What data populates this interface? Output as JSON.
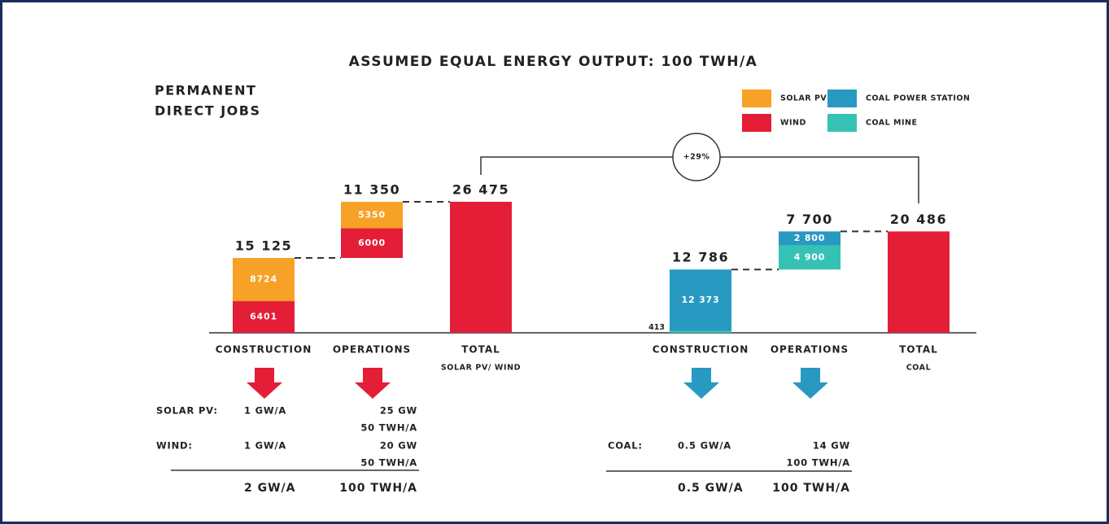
{
  "chart_data": {
    "type": "waterfall",
    "title": "ASSUMED EQUAL ENERGY OUTPUT: 100 TWH/A",
    "subtitle": [
      "PERMANENT",
      "DIRECT JOBS"
    ],
    "categories": [
      "CONSTRUCTION",
      "OPERATIONS",
      "TOTAL",
      "CONSTRUCTION",
      "OPERATIONS",
      "TOTAL"
    ],
    "category_sublabels": [
      null,
      null,
      "SOLAR PV/ WIND",
      null,
      null,
      "COAL"
    ],
    "series": [
      {
        "name": "SOLAR PV",
        "color": "#f7a127",
        "values": [
          8724,
          5350,
          null,
          null,
          null,
          null
        ]
      },
      {
        "name": "WIND",
        "color": "#e31e36",
        "values": [
          6401,
          6000,
          null,
          null,
          null,
          null
        ]
      },
      {
        "name": "COAL POWER STATION",
        "color": "#2899c1",
        "values": [
          null,
          null,
          null,
          12373,
          2800,
          null
        ],
        "value_labels": [
          null,
          null,
          null,
          "12 373",
          "2 800",
          null
        ]
      },
      {
        "name": "COAL MINE",
        "color": "#35c2b5",
        "values": [
          null,
          null,
          null,
          413,
          4900,
          null
        ],
        "value_labels": [
          null,
          null,
          null,
          "413",
          "4 900",
          null
        ]
      }
    ],
    "totals": {
      "values": [
        15125,
        11350,
        26475,
        12786,
        7700,
        20486
      ],
      "value_labels": [
        "15 125",
        "11 350",
        "26 475",
        "12 786",
        "7 700",
        "20 486"
      ],
      "color": "#e31e36"
    },
    "comparison_label": "+29%",
    "arrow_colors": [
      "#e31e36",
      "#2899c1"
    ],
    "capacity_tables": [
      {
        "rows": [
          [
            "SOLAR PV:",
            "1 GW/A",
            "25 GW",
            "50 TWH/A"
          ],
          [
            "WIND:",
            "1 GW/A",
            "20 GW",
            "50 TWH/A"
          ]
        ],
        "total": [
          "2 GW/A",
          "100 TWH/A"
        ]
      },
      {
        "rows": [
          [
            "COAL:",
            "0.5 GW/A",
            "14 GW",
            "100 TWH/A"
          ]
        ],
        "total": [
          "0.5 GW/A",
          "100 TWH/A"
        ]
      }
    ]
  }
}
